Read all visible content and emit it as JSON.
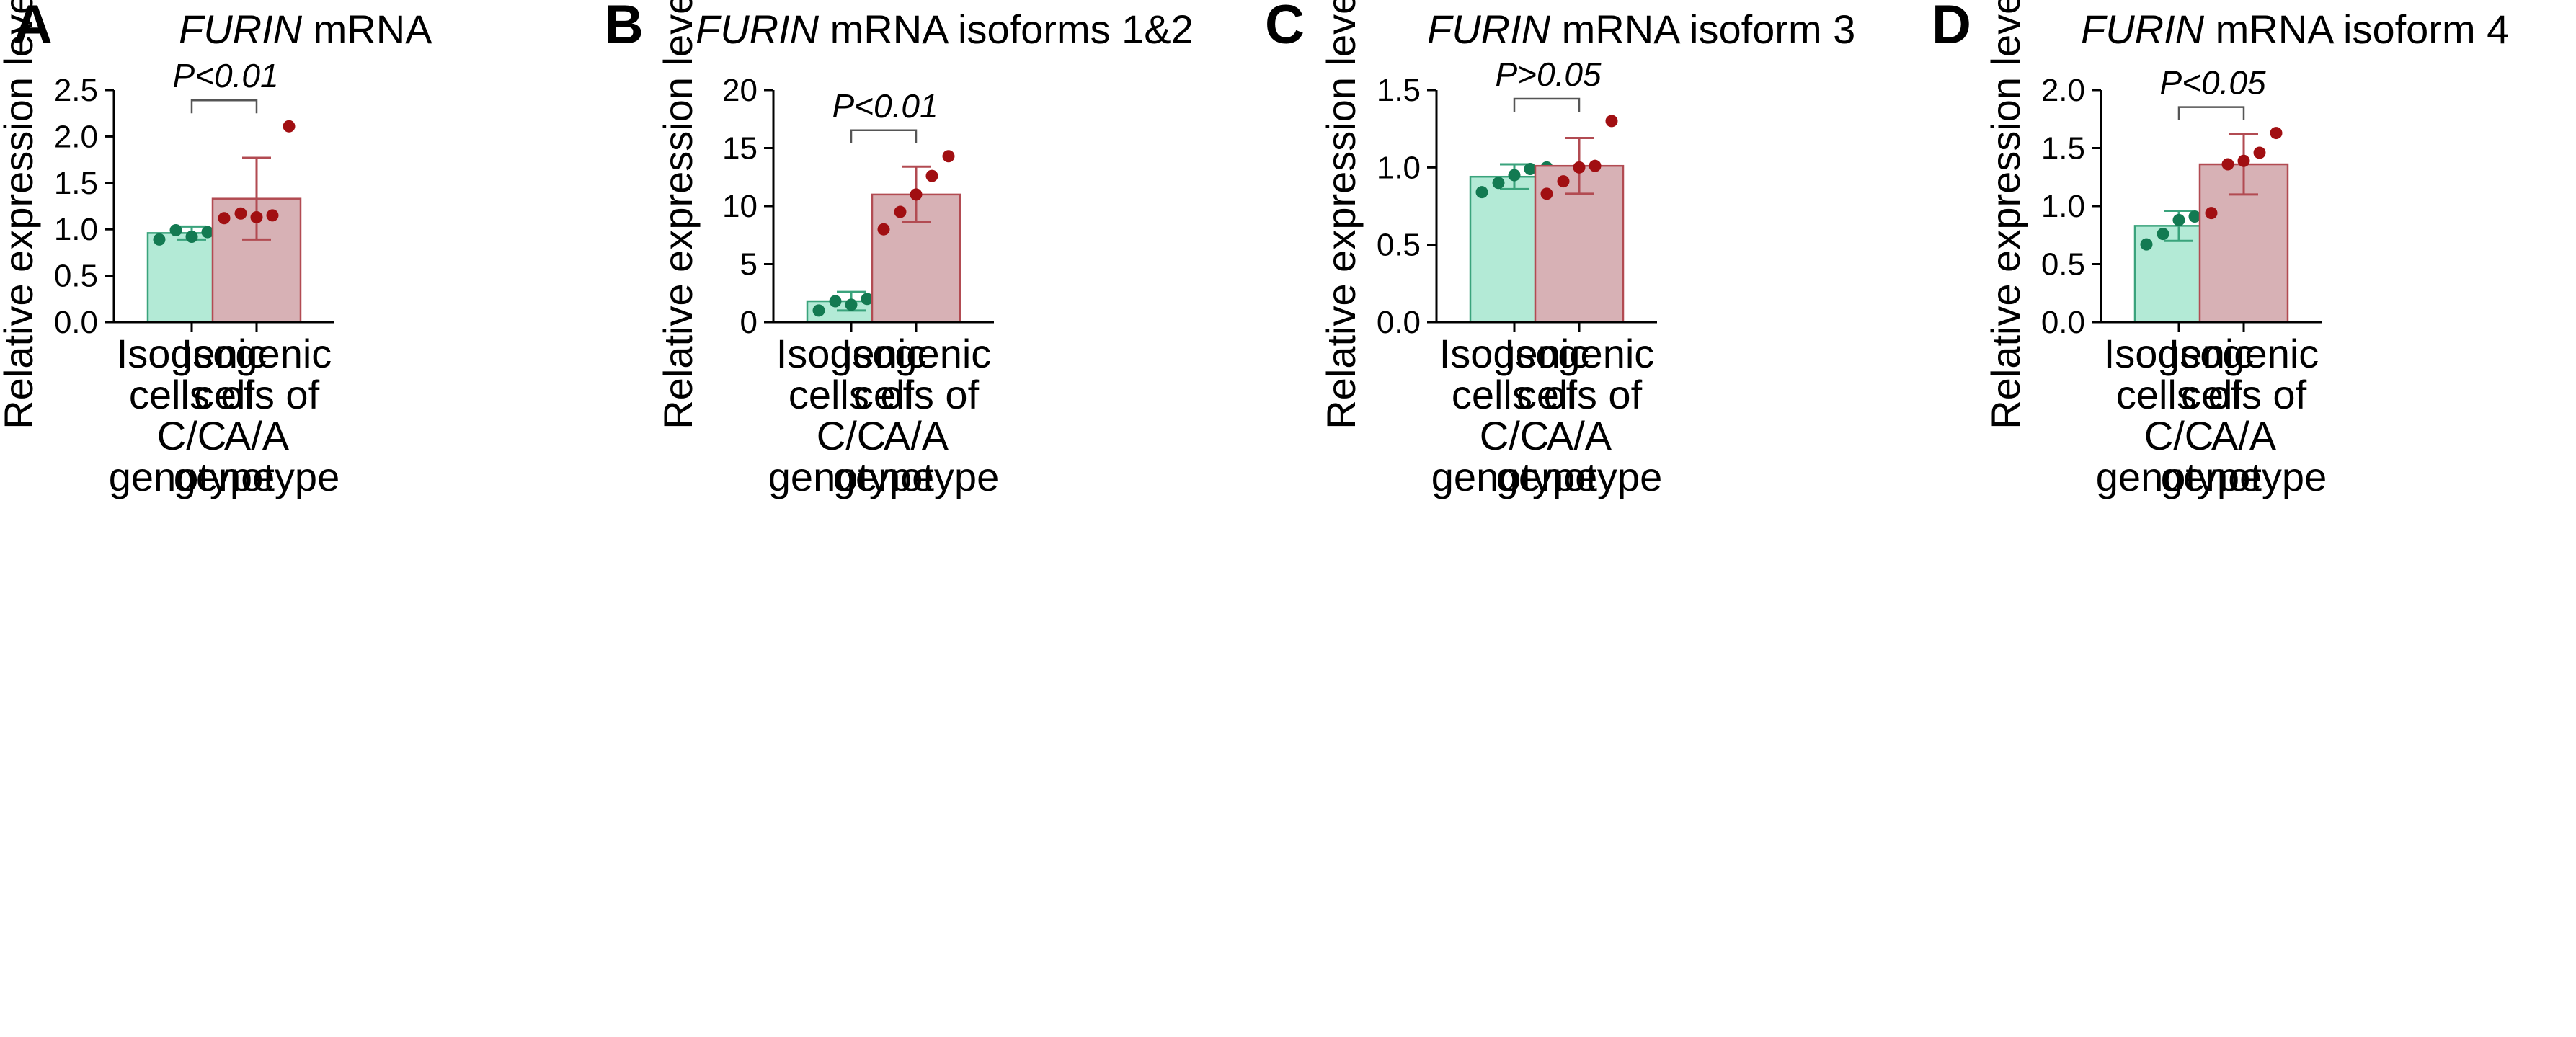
{
  "colors": {
    "cc_fill": "#b3ead6",
    "cc_stroke": "#3aa37c",
    "cc_point": "#137a52",
    "aa_fill": "#d7b1b5",
    "aa_stroke": "#b24b52",
    "aa_point": "#a10f12",
    "axis": "#000000",
    "bracket": "#555555"
  },
  "y_axis_label": "Relative expression level",
  "category_labels": [
    [
      "Isogenic",
      "cells of",
      "C/C",
      "genotype"
    ],
    [
      "Isogenic",
      "cells of",
      "A/A",
      "genotype"
    ]
  ],
  "chart_data": [
    {
      "panel": "A",
      "type": "bar",
      "title_italic": "FURIN",
      "title_rest": " mRNA",
      "ylabel": "Relative expression level",
      "ylim": [
        0,
        2.5
      ],
      "ticks": [
        0,
        0.5,
        1.0,
        1.5,
        2.0,
        2.5
      ],
      "tick_labels": [
        "0.0",
        "0.5",
        "1.0",
        "1.5",
        "2.0",
        "2.5"
      ],
      "categories": [
        "Isogenic cells of C/C genotype",
        "Isogenic cells of A/A genotype"
      ],
      "series": [
        {
          "name": "C/C",
          "mean": 0.96,
          "sd": 0.07,
          "points": [
            0.89,
            0.99,
            0.92,
            0.97,
            1.05
          ]
        },
        {
          "name": "A/A",
          "mean": 1.33,
          "sd": 0.44,
          "points": [
            1.12,
            1.17,
            1.13,
            1.15,
            2.11
          ]
        }
      ],
      "significance": "P<0.01"
    },
    {
      "panel": "B",
      "type": "bar",
      "title_italic": "FURIN",
      "title_rest": " mRNA isoforms 1&2",
      "ylabel": "Relative expression level",
      "ylim": [
        0,
        20
      ],
      "ticks": [
        0,
        5,
        10,
        15,
        20
      ],
      "tick_labels": [
        "0",
        "5",
        "10",
        "15",
        "20"
      ],
      "categories": [
        "Isogenic cells of C/C genotype",
        "Isogenic cells of A/A genotype"
      ],
      "series": [
        {
          "name": "C/C",
          "mean": 1.8,
          "sd": 0.8,
          "points": [
            1.0,
            1.8,
            1.5,
            2.0,
            2.8
          ]
        },
        {
          "name": "A/A",
          "mean": 11.0,
          "sd": 2.4,
          "points": [
            8.0,
            9.5,
            11.0,
            12.6,
            14.3
          ]
        }
      ],
      "significance": "P<0.01"
    },
    {
      "panel": "C",
      "type": "bar",
      "title_italic": "FURIN",
      "title_rest": " mRNA isoform 3",
      "ylabel": "Relative expression level",
      "ylim": [
        0,
        1.5
      ],
      "ticks": [
        0,
        0.5,
        1.0,
        1.5
      ],
      "tick_labels": [
        "0.0",
        "0.5",
        "1.0",
        "1.5"
      ],
      "categories": [
        "Isogenic cells of C/C genotype",
        "Isogenic cells of A/A genotype"
      ],
      "series": [
        {
          "name": "C/C",
          "mean": 0.94,
          "sd": 0.08,
          "points": [
            0.84,
            0.9,
            0.95,
            0.99,
            1.0
          ]
        },
        {
          "name": "A/A",
          "mean": 1.01,
          "sd": 0.18,
          "points": [
            0.83,
            0.91,
            1.0,
            1.01,
            1.3
          ]
        }
      ],
      "significance": "P>0.05"
    },
    {
      "panel": "D",
      "type": "bar",
      "title_italic": "FURIN",
      "title_rest": " mRNA isoform 4",
      "ylabel": "Relative expression level",
      "ylim": [
        0,
        2.0
      ],
      "ticks": [
        0,
        0.5,
        1.0,
        1.5,
        2.0
      ],
      "tick_labels": [
        "0.0",
        "0.5",
        "1.0",
        "1.5",
        "2.0"
      ],
      "categories": [
        "Isogenic cells of C/C genotype",
        "Isogenic cells of A/A genotype"
      ],
      "series": [
        {
          "name": "C/C",
          "mean": 0.83,
          "sd": 0.13,
          "points": [
            0.67,
            0.76,
            0.88,
            0.91,
            0.99
          ]
        },
        {
          "name": "A/A",
          "mean": 1.36,
          "sd": 0.26,
          "points": [
            0.94,
            1.36,
            1.39,
            1.46,
            1.63
          ]
        }
      ],
      "significance": "P<0.05"
    }
  ]
}
